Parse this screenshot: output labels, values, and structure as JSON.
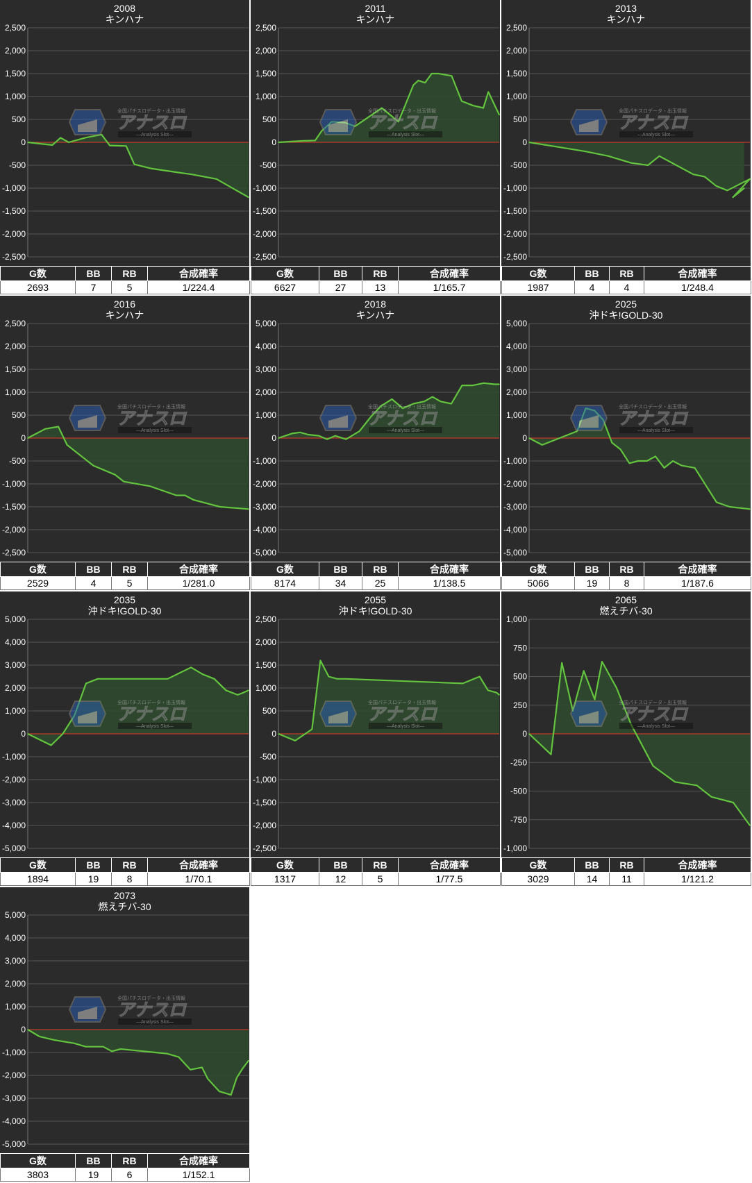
{
  "stat_headers": [
    "G数",
    "BB",
    "RB",
    "合成確率"
  ],
  "colors": {
    "background": "#2b2b2b",
    "line": "#63c43e",
    "fill": "#2f4a2f",
    "zero_line": "#c0392b",
    "grid": "#555555"
  },
  "watermark": {
    "text": "アナスロ",
    "sub": "Analysis Slot",
    "top": "全国パチスロデータ・出玉情報"
  },
  "chart_data": [
    {
      "type": "area",
      "title": "2008",
      "subtitle": "キンハナ",
      "ylim": [
        -2500,
        2500
      ],
      "yticks": [
        2500,
        2000,
        1500,
        1000,
        500,
        0,
        -500,
        -1000,
        -1500,
        -2000,
        -2500
      ],
      "x": [
        0,
        150,
        300,
        400,
        500,
        700,
        900,
        1000,
        1200,
        1300,
        1500,
        1800,
        2000,
        2300,
        2693
      ],
      "values": [
        0,
        -30,
        -60,
        100,
        0,
        100,
        170,
        -70,
        -80,
        -480,
        -570,
        -650,
        -700,
        -800,
        -1200
      ],
      "stats": {
        "g": "2693",
        "bb": "7",
        "rb": "5",
        "rate": "1/224.4"
      }
    },
    {
      "type": "area",
      "title": "2011",
      "subtitle": "キンハナ",
      "ylim": [
        -2500,
        2500
      ],
      "yticks": [
        2500,
        2000,
        1500,
        1000,
        500,
        0,
        -500,
        -1000,
        -1500,
        -2000,
        -2500
      ],
      "x": [
        0,
        700,
        1100,
        1300,
        1600,
        2000,
        2300,
        2700,
        3100,
        3350,
        3600,
        3800,
        4050,
        4200,
        4400,
        4600,
        4800,
        5200,
        5500,
        5850,
        6150,
        6300,
        6627
      ],
      "values": [
        0,
        30,
        40,
        250,
        450,
        430,
        350,
        550,
        750,
        600,
        450,
        800,
        1250,
        1350,
        1300,
        1500,
        1500,
        1450,
        900,
        800,
        750,
        1100,
        600
      ],
      "stats": {
        "g": "6627",
        "bb": "27",
        "rb": "13",
        "rate": "1/165.7"
      }
    },
    {
      "type": "area",
      "title": "2013",
      "subtitle": "キンハナ",
      "ylim": [
        -2500,
        2500
      ],
      "yticks": [
        2500,
        2000,
        1500,
        1000,
        500,
        0,
        -500,
        -1000,
        -1500,
        -2000,
        -2500
      ],
      "x": [
        0,
        250,
        500,
        700,
        900,
        1050,
        1150,
        1300,
        1450,
        1550,
        1650,
        1750,
        1950,
        1800,
        1850,
        1900
      ],
      "values": [
        0,
        -100,
        -200,
        -300,
        -450,
        -500,
        -300,
        -500,
        -700,
        -750,
        -950,
        -1050,
        -800,
        -1200,
        -1100,
        -1000
      ],
      "stats": {
        "g": "1987",
        "bb": "4",
        "rb": "4",
        "rate": "1/248.4"
      }
    },
    {
      "type": "area",
      "title": "2016",
      "subtitle": "キンハナ",
      "ylim": [
        -2500,
        2500
      ],
      "yticks": [
        2500,
        2000,
        1500,
        1000,
        500,
        0,
        -500,
        -1000,
        -1500,
        -2000,
        -2500
      ],
      "x": [
        0,
        200,
        350,
        450,
        750,
        1000,
        1100,
        1400,
        1700,
        1800,
        1900,
        2200,
        2529
      ],
      "values": [
        0,
        200,
        250,
        -150,
        -600,
        -800,
        -950,
        -1050,
        -1250,
        -1250,
        -1350,
        -1500,
        -1550
      ],
      "stats": {
        "g": "2529",
        "bb": "4",
        "rb": "5",
        "rate": "1/281.0"
      }
    },
    {
      "type": "area",
      "title": "2018",
      "subtitle": "キンハナ",
      "ylim": [
        -5000,
        5000
      ],
      "yticks": [
        5000,
        4000,
        3000,
        2000,
        1000,
        0,
        -1000,
        -2000,
        -3000,
        -4000,
        -5000
      ],
      "x": [
        0,
        500,
        800,
        1100,
        1500,
        1800,
        2100,
        2500,
        3000,
        3400,
        3800,
        4200,
        4600,
        5000,
        5400,
        5700,
        6000,
        6400,
        6800,
        7200,
        7600,
        8000,
        8174
      ],
      "values": [
        0,
        200,
        250,
        150,
        100,
        -50,
        100,
        -50,
        300,
        900,
        1400,
        1700,
        1300,
        1500,
        1600,
        1800,
        1600,
        1500,
        2300,
        2300,
        2400,
        2350,
        2350
      ],
      "stats": {
        "g": "8174",
        "bb": "34",
        "rb": "25",
        "rate": "1/138.5"
      }
    },
    {
      "type": "area",
      "title": "2025",
      "subtitle": "沖ドキ!GOLD-30",
      "ylim": [
        -5000,
        5000
      ],
      "yticks": [
        5000,
        4000,
        3000,
        2000,
        1000,
        0,
        -1000,
        -2000,
        -3000,
        -4000,
        -5000
      ],
      "x": [
        0,
        300,
        700,
        1100,
        1300,
        1500,
        1700,
        1900,
        2100,
        2300,
        2500,
        2700,
        2900,
        3100,
        3300,
        3500,
        3800,
        4000,
        4300,
        4600,
        5066
      ],
      "values": [
        0,
        -300,
        0,
        300,
        1300,
        1200,
        800,
        -200,
        -500,
        -1100,
        -1000,
        -1000,
        -800,
        -1300,
        -1000,
        -1200,
        -1300,
        -1900,
        -2800,
        -3000,
        -3100
      ],
      "stats": {
        "g": "5066",
        "bb": "19",
        "rb": "8",
        "rate": "1/187.6"
      }
    },
    {
      "type": "area",
      "title": "2035",
      "subtitle": "沖ドキ!GOLD-30",
      "ylim": [
        -5000,
        5000
      ],
      "yticks": [
        5000,
        4000,
        3000,
        2000,
        1000,
        0,
        -1000,
        -2000,
        -3000,
        -4000,
        -5000
      ],
      "x": [
        0,
        200,
        300,
        400,
        500,
        600,
        700,
        1200,
        1400,
        1500,
        1600,
        1700,
        1800,
        1850,
        1894
      ],
      "values": [
        0,
        -500,
        0,
        800,
        2200,
        2400,
        2400,
        2400,
        2900,
        2600,
        2400,
        1900,
        1700,
        1800,
        1900
      ],
      "stats": {
        "g": "1894",
        "bb": "19",
        "rb": "8",
        "rate": "1/70.1"
      }
    },
    {
      "type": "area",
      "title": "2055",
      "subtitle": "沖ドキ!GOLD-30",
      "ylim": [
        -2500,
        2500
      ],
      "yticks": [
        2500,
        2000,
        1500,
        1000,
        500,
        0,
        -500,
        -1000,
        -1500,
        -2000,
        -2500
      ],
      "x": [
        0,
        100,
        200,
        250,
        300,
        350,
        400,
        1100,
        1200,
        1250,
        1300,
        1317
      ],
      "values": [
        0,
        -150,
        100,
        1600,
        1250,
        1200,
        1200,
        1100,
        1250,
        950,
        900,
        850
      ],
      "stats": {
        "g": "1317",
        "bb": "12",
        "rb": "5",
        "rate": "1/77.5"
      }
    },
    {
      "type": "area",
      "title": "2065",
      "subtitle": "燃えチバ-30",
      "ylim": [
        -1000,
        1000
      ],
      "yticks": [
        1000,
        750,
        500,
        250,
        0,
        -250,
        -500,
        -750,
        -1000
      ],
      "x": [
        0,
        300,
        450,
        600,
        750,
        900,
        1000,
        1200,
        1400,
        1700,
        2000,
        2300,
        2500,
        2800,
        3029
      ],
      "values": [
        0,
        -180,
        620,
        200,
        550,
        300,
        630,
        400,
        80,
        -280,
        -420,
        -450,
        -550,
        -600,
        -800
      ],
      "stats": {
        "g": "3029",
        "bb": "14",
        "rb": "11",
        "rate": "1/121.2"
      }
    },
    {
      "type": "area",
      "title": "2073",
      "subtitle": "燃えチバ-30",
      "ylim": [
        -5000,
        5000
      ],
      "yticks": [
        5000,
        4000,
        3000,
        2000,
        1000,
        0,
        -1000,
        -2000,
        -3000,
        -4000,
        -5000
      ],
      "x": [
        0,
        200,
        450,
        800,
        1000,
        1300,
        1450,
        1600,
        1800,
        2000,
        2200,
        2400,
        2600,
        2800,
        3000,
        3100,
        3300,
        3500,
        3600,
        3700,
        3803
      ],
      "values": [
        0,
        -300,
        -450,
        -600,
        -750,
        -750,
        -950,
        -850,
        -900,
        -950,
        -1000,
        -1050,
        -1200,
        -1750,
        -1650,
        -2150,
        -2700,
        -2850,
        -2100,
        -1700,
        -1350
      ],
      "stats": {
        "g": "3803",
        "bb": "19",
        "rb": "6",
        "rate": "1/152.1"
      }
    }
  ]
}
